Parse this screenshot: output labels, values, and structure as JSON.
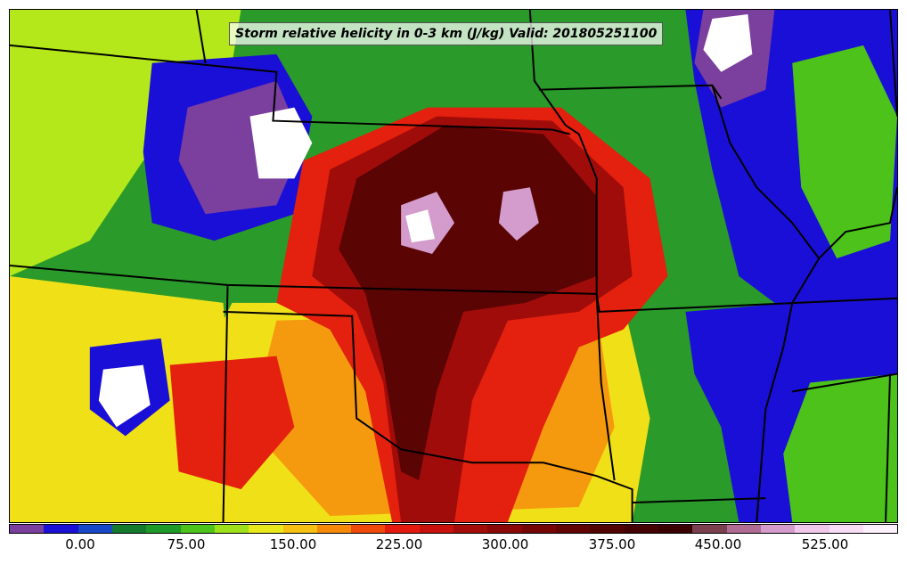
{
  "title": "Storm relative helicity in 0-3 km (J/kg) Valid: 201805251100",
  "colorbar": {
    "ticks": [
      "0.00",
      "75.00",
      "150.00",
      "225.00",
      "300.00",
      "375.00",
      "450.00",
      "525.00"
    ],
    "colors": [
      "#7b3f9e",
      "#1a0fd6",
      "#1746c8",
      "#137a2e",
      "#1d9a28",
      "#4cc21a",
      "#9ee01a",
      "#e8e81a",
      "#f5c012",
      "#f58a0a",
      "#ef4a0c",
      "#e41a10",
      "#c8100c",
      "#a40c0a",
      "#8a0808",
      "#760606",
      "#620404",
      "#520303",
      "#440202",
      "#3a0102",
      "#7a4050",
      "#b06c94",
      "#d49ccc",
      "#f0c8ec",
      "#f8dcf6",
      "#fcf0fc"
    ]
  },
  "map": {
    "layers": {
      "background": "#2a9a2a",
      "purple": "#7b3f9e",
      "blue": "#1a0fd6",
      "dark_green": "#137a2e",
      "green": "#4cc21a",
      "yellow_green": "#b4e81a",
      "yellow": "#f0e018",
      "orange": "#f59a0e",
      "red": "#e4200e",
      "dark_red": "#a00c0a",
      "maroon": "#5a0404",
      "pink": "#d49ccc",
      "white": "#ffffff"
    }
  }
}
